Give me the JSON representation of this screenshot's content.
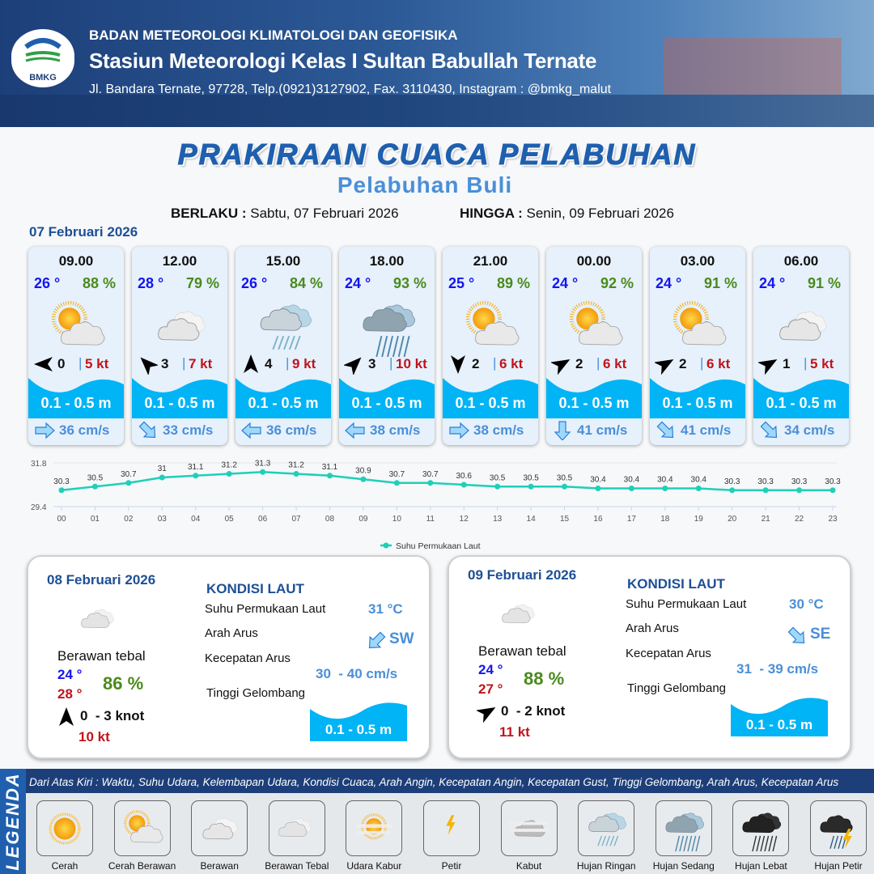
{
  "header": {
    "logo_text": "BMKG",
    "agency": "BADAN METEOROLOGI KLIMATOLOGI DAN GEOFISIKA",
    "station": "Stasiun Meteorologi Kelas I Sultan Babullah Ternate",
    "address": "Jl. Bandara Ternate, 97728, Telp.(0921)3127902, Fax. 3110430, Instagram : @bmkg_malut"
  },
  "title": "PRAKIRAAN CUACA PELABUHAN",
  "subtitle": "Pelabuhan Buli",
  "validity": {
    "from_label": "BERLAKU :",
    "from_value": "Sabtu, 07 Februari 2026",
    "to_label": "HINGGA :",
    "to_value": "Senin, 09 Februari 2026"
  },
  "day1": {
    "date": "07 Februari 2026",
    "forecasts": [
      {
        "time": "09.00",
        "temp": "26 °",
        "humidity": "88 %",
        "condition": "cerah-berawan",
        "wind_dir_deg": 270,
        "wind_speed": "0",
        "gust": "5 kt",
        "wave": "0.1 - 0.5 m",
        "current_dir_deg": 90,
        "current_speed": "36 cm/s"
      },
      {
        "time": "12.00",
        "temp": "28 °",
        "humidity": "79 %",
        "condition": "berawan",
        "wind_dir_deg": 315,
        "wind_speed": "3",
        "gust": "7 kt",
        "wave": "0.1 - 0.5 m",
        "current_dir_deg": 135,
        "current_speed": "33 cm/s"
      },
      {
        "time": "15.00",
        "temp": "26 °",
        "humidity": "84 %",
        "condition": "hujan-ringan",
        "wind_dir_deg": 0,
        "wind_speed": "4",
        "gust": "9 kt",
        "wave": "0.1 - 0.5 m",
        "current_dir_deg": 270,
        "current_speed": "36 cm/s"
      },
      {
        "time": "18.00",
        "temp": "24 °",
        "humidity": "93 %",
        "condition": "hujan-sedang",
        "wind_dir_deg": 45,
        "wind_speed": "3",
        "gust": "10 kt",
        "wave": "0.1 - 0.5 m",
        "current_dir_deg": 270,
        "current_speed": "38 cm/s"
      },
      {
        "time": "21.00",
        "temp": "25 °",
        "humidity": "89 %",
        "condition": "cerah-berawan",
        "wind_dir_deg": 180,
        "wind_speed": "2",
        "gust": "6 kt",
        "wave": "0.1 - 0.5 m",
        "current_dir_deg": 90,
        "current_speed": "38 cm/s"
      },
      {
        "time": "00.00",
        "temp": "24 °",
        "humidity": "92 %",
        "condition": "cerah-berawan",
        "wind_dir_deg": 60,
        "wind_speed": "2",
        "gust": "6 kt",
        "wave": "0.1 - 0.5 m",
        "current_dir_deg": 180,
        "current_speed": "41 cm/s"
      },
      {
        "time": "03.00",
        "temp": "24 °",
        "humidity": "91 %",
        "condition": "cerah-berawan",
        "wind_dir_deg": 60,
        "wind_speed": "2",
        "gust": "6 kt",
        "wave": "0.1 - 0.5 m",
        "current_dir_deg": 135,
        "current_speed": "41 cm/s"
      },
      {
        "time": "06.00",
        "temp": "24 °",
        "humidity": "91 %",
        "condition": "berawan",
        "wind_dir_deg": 60,
        "wind_speed": "1",
        "gust": "5 kt",
        "wave": "0.1 - 0.5 m",
        "current_dir_deg": 135,
        "current_speed": "34 cm/s"
      }
    ]
  },
  "chart_data": {
    "type": "line",
    "x": [
      "00",
      "01",
      "02",
      "03",
      "04",
      "05",
      "06",
      "07",
      "08",
      "09",
      "10",
      "11",
      "12",
      "13",
      "14",
      "15",
      "16",
      "17",
      "18",
      "19",
      "20",
      "21",
      "22",
      "23"
    ],
    "series": [
      {
        "name": "Suhu Permukaan Laut",
        "values": [
          30.3,
          30.5,
          30.7,
          31.0,
          31.1,
          31.2,
          31.3,
          31.2,
          31.1,
          30.9,
          30.7,
          30.7,
          30.6,
          30.5,
          30.5,
          30.5,
          30.4,
          30.4,
          30.4,
          30.4,
          30.3,
          30.3,
          30.3,
          30.3
        ],
        "color": "#1fcfb8"
      }
    ],
    "yticks": [
      "31.8",
      "29.4"
    ],
    "ylim": [
      29.4,
      31.8
    ],
    "legend": "bottom",
    "grid": true
  },
  "days": [
    {
      "date": "08 Februari 2026",
      "condition": "berawan-tebal",
      "condition_label": "Berawan tebal",
      "temp_min": "24 °",
      "temp_max": "28 °",
      "humidity": "86 %",
      "wind_dir_deg": 0,
      "wind": "0  - 3 knot",
      "gust": "10 kt",
      "sea": {
        "title": "KONDISI LAUT",
        "sst_label": "Suhu Permukaan Laut",
        "sst": "31 °C",
        "dir_label": "Arah Arus",
        "dir": "SW",
        "dir_deg": 225,
        "speed_label": "Kecepatan Arus",
        "speed": "30  - 40 cm/s",
        "wave_label": "Tinggi Gelombang",
        "wave": "0.1 - 0.5 m"
      }
    },
    {
      "date": "09 Februari 2026",
      "condition": "berawan-tebal",
      "condition_label": "Berawan tebal",
      "temp_min": "24 °",
      "temp_max": "27 °",
      "humidity": "88 %",
      "wind_dir_deg": 60,
      "wind": "0  - 2 knot",
      "gust": "11 kt",
      "sea": {
        "title": "KONDISI LAUT",
        "sst_label": "Suhu Permukaan Laut",
        "sst": "30 °C",
        "dir_label": "Arah Arus",
        "dir": "SE",
        "dir_deg": 135,
        "speed_label": "Kecepatan Arus",
        "speed": "31  - 39 cm/s",
        "wave_label": "Tinggi Gelombang",
        "wave": "0.1 - 0.5 m"
      }
    }
  ],
  "legend": {
    "title": "LEGENDA",
    "description": "Dari Atas Kiri : Waktu, Suhu Udara, Kelembapan Udara, Kondisi Cuaca, Arah Angin, Kecepatan Angin, Kecepatan Gust, Tinggi Gelombang, Arah Arus, Kecepatan Arus",
    "items": [
      {
        "icon": "cerah",
        "label": "Cerah"
      },
      {
        "icon": "cerah-berawan",
        "label": "Cerah Berawan"
      },
      {
        "icon": "berawan",
        "label": "Berawan"
      },
      {
        "icon": "berawan-tebal",
        "label": "Berawan Tebal"
      },
      {
        "icon": "udara-kabur",
        "label": "Udara Kabur"
      },
      {
        "icon": "petir",
        "label": "Petir"
      },
      {
        "icon": "kabut",
        "label": "Kabut"
      },
      {
        "icon": "hujan-ringan",
        "label": "Hujan Ringan"
      },
      {
        "icon": "hujan-sedang",
        "label": "Hujan Sedang"
      },
      {
        "icon": "hujan-lebat",
        "label": "Hujan Lebat"
      },
      {
        "icon": "hujan-petir",
        "label": "Hujan Petir"
      }
    ]
  },
  "colors": {
    "brand": "#1d3f79",
    "title": "#1f5fae",
    "wave": "#00b4f5",
    "temp": "#1515f0",
    "humidity": "#4a8a1c",
    "gust": "#c0141c",
    "current": "#4a8fd8"
  }
}
